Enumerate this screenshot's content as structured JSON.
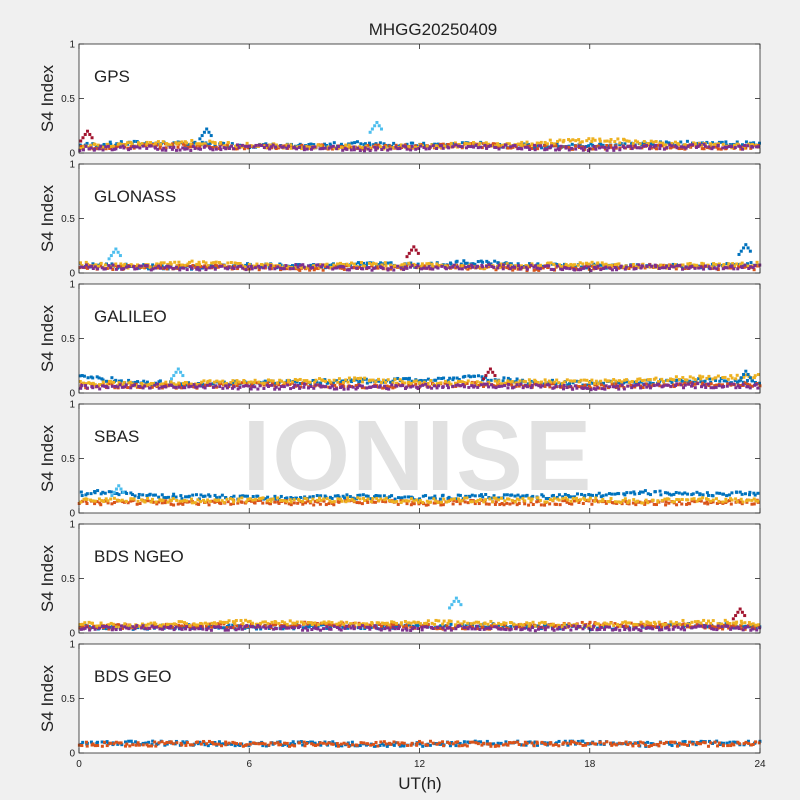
{
  "chart_data": {
    "type": "scatter",
    "title": "MHGG20250409",
    "xlabel": "UT(h)",
    "ylabel": "S4 Index",
    "xlim": [
      0,
      24
    ],
    "ylim": [
      0,
      1
    ],
    "xticks": [
      "0",
      "6",
      "12",
      "18",
      "24"
    ],
    "yticks": [
      "0",
      "0.5",
      "1"
    ],
    "watermark": "IONISE",
    "grid": false,
    "series_colors": [
      "#0072BD",
      "#D95319",
      "#EDB120",
      "#7E2F8E",
      "#77AC30",
      "#4DBEEE",
      "#A2142F"
    ],
    "panels": [
      {
        "name": "GPS",
        "series": [
          {
            "x": [
              0,
              2,
              4,
              6,
              8,
              10,
              12,
              14,
              16,
              18,
              20,
              22,
              24
            ],
            "y": [
              0.07,
              0.09,
              0.08,
              0.07,
              0.06,
              0.09,
              0.07,
              0.08,
              0.06,
              0.07,
              0.08,
              0.09,
              0.08
            ]
          },
          {
            "x": [
              0,
              2,
              4,
              6,
              8,
              10,
              12,
              14,
              16,
              18,
              20,
              22,
              24
            ],
            "y": [
              0.05,
              0.06,
              0.07,
              0.05,
              0.06,
              0.05,
              0.06,
              0.07,
              0.06,
              0.05,
              0.06,
              0.05,
              0.06
            ]
          },
          {
            "x": [
              0,
              2,
              4,
              6,
              8,
              10,
              12,
              14,
              16,
              18,
              20,
              22,
              24
            ],
            "y": [
              0.06,
              0.08,
              0.1,
              0.07,
              0.06,
              0.05,
              0.06,
              0.08,
              0.09,
              0.12,
              0.1,
              0.07,
              0.06
            ]
          },
          {
            "x": [
              0,
              2,
              4,
              6,
              8,
              10,
              12,
              14,
              16,
              18,
              20,
              22,
              24
            ],
            "y": [
              0.04,
              0.05,
              0.04,
              0.06,
              0.05,
              0.04,
              0.05,
              0.06,
              0.05,
              0.04,
              0.05,
              0.06,
              0.05
            ]
          }
        ],
        "peaks": [
          {
            "x": 10.5,
            "y": 0.28
          },
          {
            "x": 0.3,
            "y": 0.2
          },
          {
            "x": 4.5,
            "y": 0.22
          }
        ]
      },
      {
        "name": "GLONASS",
        "series": [
          {
            "x": [
              0,
              2,
              4,
              6,
              8,
              10,
              12,
              14,
              16,
              18,
              20,
              22,
              24
            ],
            "y": [
              0.07,
              0.06,
              0.05,
              0.07,
              0.06,
              0.08,
              0.07,
              0.1,
              0.07,
              0.06,
              0.07,
              0.06,
              0.08
            ]
          },
          {
            "x": [
              0,
              2,
              4,
              6,
              8,
              10,
              12,
              14,
              16,
              18,
              20,
              22,
              24
            ],
            "y": [
              0.05,
              0.05,
              0.06,
              0.05,
              0.04,
              0.05,
              0.06,
              0.05,
              0.04,
              0.05,
              0.06,
              0.05,
              0.05
            ]
          },
          {
            "x": [
              0,
              2,
              4,
              6,
              8,
              10,
              12,
              14,
              16,
              18,
              20,
              22,
              24
            ],
            "y": [
              0.08,
              0.06,
              0.09,
              0.07,
              0.06,
              0.08,
              0.07,
              0.06,
              0.07,
              0.08,
              0.06,
              0.07,
              0.08
            ]
          },
          {
            "x": [
              0,
              2,
              4,
              6,
              8,
              10,
              12,
              14,
              16,
              18,
              20,
              22,
              24
            ],
            "y": [
              0.06,
              0.05,
              0.04,
              0.05,
              0.06,
              0.04,
              0.05,
              0.06,
              0.05,
              0.04,
              0.06,
              0.05,
              0.06
            ]
          }
        ],
        "peaks": [
          {
            "x": 1.3,
            "y": 0.22
          },
          {
            "x": 11.8,
            "y": 0.24
          },
          {
            "x": 23.5,
            "y": 0.26
          }
        ]
      },
      {
        "name": "GALILEO",
        "series": [
          {
            "x": [
              0,
              2,
              4,
              6,
              8,
              10,
              12,
              14,
              16,
              18,
              20,
              22,
              24
            ],
            "y": [
              0.15,
              0.1,
              0.08,
              0.09,
              0.1,
              0.11,
              0.12,
              0.14,
              0.1,
              0.09,
              0.1,
              0.12,
              0.1
            ]
          },
          {
            "x": [
              0,
              2,
              4,
              6,
              8,
              10,
              12,
              14,
              16,
              18,
              20,
              22,
              24
            ],
            "y": [
              0.06,
              0.07,
              0.06,
              0.08,
              0.07,
              0.06,
              0.07,
              0.08,
              0.07,
              0.06,
              0.07,
              0.08,
              0.07
            ]
          },
          {
            "x": [
              0,
              2,
              4,
              6,
              8,
              10,
              12,
              14,
              16,
              18,
              20,
              22,
              24
            ],
            "y": [
              0.1,
              0.08,
              0.09,
              0.1,
              0.11,
              0.12,
              0.1,
              0.09,
              0.11,
              0.1,
              0.12,
              0.14,
              0.15
            ]
          },
          {
            "x": [
              0,
              2,
              4,
              6,
              8,
              10,
              12,
              14,
              16,
              18,
              20,
              22,
              24
            ],
            "y": [
              0.05,
              0.06,
              0.07,
              0.05,
              0.06,
              0.05,
              0.06,
              0.07,
              0.06,
              0.05,
              0.06,
              0.07,
              0.06
            ]
          }
        ],
        "peaks": [
          {
            "x": 3.5,
            "y": 0.22
          },
          {
            "x": 14.5,
            "y": 0.22
          },
          {
            "x": 23.5,
            "y": 0.2
          }
        ]
      },
      {
        "name": "SBAS",
        "series": [
          {
            "x": [
              0,
              1,
              2,
              4,
              6,
              8,
              10,
              12,
              14,
              16,
              18,
              20,
              22,
              24
            ],
            "y": [
              0.17,
              0.2,
              0.16,
              0.15,
              0.14,
              0.14,
              0.15,
              0.14,
              0.15,
              0.15,
              0.16,
              0.19,
              0.17,
              0.18
            ]
          },
          {
            "x": [
              0,
              2,
              4,
              6,
              8,
              10,
              12,
              14,
              16,
              18,
              20,
              22,
              24
            ],
            "y": [
              0.09,
              0.1,
              0.09,
              0.1,
              0.09,
              0.1,
              0.09,
              0.1,
              0.09,
              0.1,
              0.09,
              0.1,
              0.1
            ]
          },
          {
            "x": [
              0,
              2,
              4,
              6,
              8,
              10,
              12,
              14,
              16,
              18,
              20,
              22,
              24
            ],
            "y": [
              0.12,
              0.12,
              0.11,
              0.12,
              0.12,
              0.12,
              0.11,
              0.12,
              0.12,
              0.12,
              0.11,
              0.12,
              0.12
            ]
          }
        ],
        "peaks": [
          {
            "x": 1.4,
            "y": 0.25
          }
        ]
      },
      {
        "name": "BDS NGEO",
        "series": [
          {
            "x": [
              0,
              2,
              4,
              6,
              8,
              10,
              12,
              14,
              16,
              18,
              20,
              22,
              24
            ],
            "y": [
              0.06,
              0.05,
              0.06,
              0.05,
              0.06,
              0.05,
              0.06,
              0.07,
              0.06,
              0.05,
              0.06,
              0.07,
              0.06
            ]
          },
          {
            "x": [
              0,
              2,
              4,
              6,
              8,
              10,
              12,
              14,
              16,
              18,
              20,
              22,
              24
            ],
            "y": [
              0.05,
              0.06,
              0.07,
              0.06,
              0.08,
              0.07,
              0.06,
              0.05,
              0.06,
              0.08,
              0.07,
              0.06,
              0.05
            ]
          },
          {
            "x": [
              0,
              2,
              4,
              6,
              8,
              10,
              12,
              14,
              16,
              18,
              20,
              22,
              24
            ],
            "y": [
              0.08,
              0.07,
              0.09,
              0.1,
              0.09,
              0.08,
              0.1,
              0.09,
              0.08,
              0.07,
              0.09,
              0.1,
              0.09
            ]
          },
          {
            "x": [
              0,
              2,
              4,
              6,
              8,
              10,
              12,
              14,
              16,
              18,
              20,
              22,
              24
            ],
            "y": [
              0.04,
              0.05,
              0.04,
              0.05,
              0.04,
              0.05,
              0.04,
              0.05,
              0.04,
              0.05,
              0.04,
              0.05,
              0.04
            ]
          }
        ],
        "peaks": [
          {
            "x": 13.3,
            "y": 0.32
          },
          {
            "x": 23.3,
            "y": 0.22
          }
        ]
      },
      {
        "name": "BDS GEO",
        "series": [
          {
            "x": [
              0,
              2,
              4,
              6,
              8,
              10,
              12,
              14,
              16,
              18,
              20,
              22,
              24
            ],
            "y": [
              0.09,
              0.09,
              0.09,
              0.08,
              0.09,
              0.08,
              0.08,
              0.09,
              0.09,
              0.09,
              0.08,
              0.09,
              0.09
            ]
          },
          {
            "x": [
              0,
              2,
              4,
              6,
              8,
              10,
              12,
              14,
              16,
              18,
              20,
              22,
              24
            ],
            "y": [
              0.08,
              0.08,
              0.09,
              0.08,
              0.08,
              0.08,
              0.09,
              0.08,
              0.08,
              0.09,
              0.08,
              0.08,
              0.09
            ]
          }
        ],
        "peaks": []
      }
    ]
  }
}
